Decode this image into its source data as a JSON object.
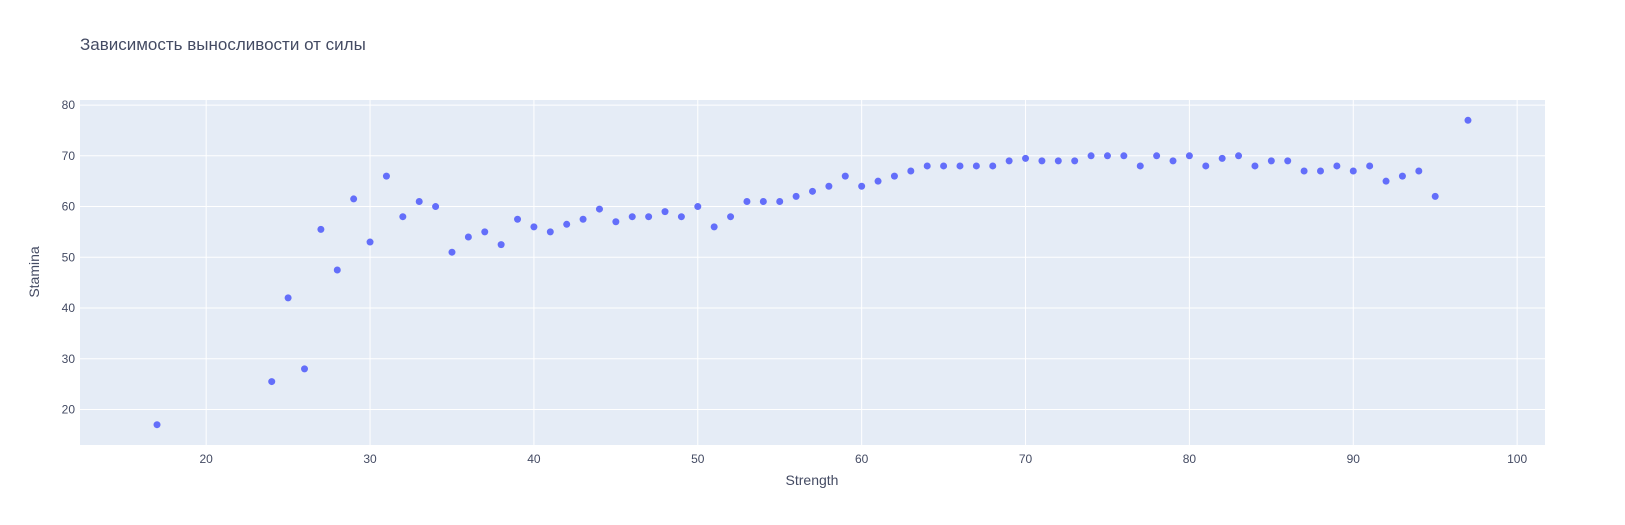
{
  "chart_data": {
    "type": "scatter",
    "title": "Зависимость выносливости от силы",
    "xlabel": "Strength",
    "ylabel": "Stamina",
    "xlim": [
      12.3,
      101.7
    ],
    "ylim": [
      13,
      81
    ],
    "xticks": [
      20,
      30,
      40,
      50,
      60,
      70,
      80,
      90,
      100
    ],
    "yticks": [
      20,
      30,
      40,
      50,
      60,
      70,
      80
    ],
    "grid": true,
    "legend": "none",
    "marker_color": "#636efa",
    "plot_bg_color": "#e5ecf6",
    "series": [
      {
        "x": [
          17,
          24,
          25,
          26,
          27,
          28,
          29,
          30,
          31,
          32,
          33,
          34,
          35,
          36,
          37,
          38,
          39,
          40,
          41,
          42,
          43,
          44,
          45,
          46,
          47,
          48,
          49,
          50,
          51,
          52,
          53,
          54,
          55,
          56,
          57,
          58,
          59,
          60,
          61,
          62,
          63,
          64,
          65,
          66,
          67,
          68,
          69,
          70,
          71,
          72,
          73,
          74,
          75,
          76,
          77,
          78,
          79,
          80,
          81,
          82,
          83,
          84,
          85,
          86,
          87,
          88,
          89,
          90,
          91,
          92,
          93,
          94,
          95,
          97
        ],
        "y": [
          17,
          25.5,
          42,
          28,
          55.5,
          47.5,
          61.5,
          53,
          66,
          58,
          61,
          60,
          51,
          54,
          55,
          52.5,
          57.5,
          56,
          55,
          56.5,
          57.5,
          59.5,
          57,
          58,
          58,
          59,
          58,
          60,
          56,
          58,
          61,
          61,
          61,
          62,
          63,
          64,
          66,
          64,
          65,
          66,
          67,
          68,
          68,
          68,
          68,
          68,
          69,
          69.5,
          69,
          69,
          69,
          70,
          70,
          70,
          68,
          70,
          69,
          70,
          68,
          69.5,
          70,
          68,
          69,
          69,
          67,
          67,
          68,
          67,
          68,
          65,
          66,
          67,
          62,
          77
        ]
      }
    ]
  }
}
